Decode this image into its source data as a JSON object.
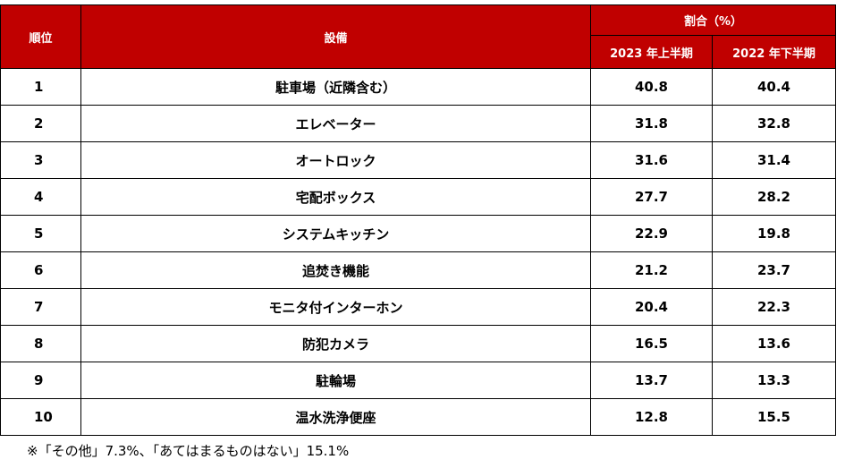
{
  "table": {
    "headers": {
      "rank": "順位",
      "facility": "設備",
      "share": "割合（%）",
      "period_2023h1": "2023 年上半期",
      "period_2022h2": "2022 年下半期"
    },
    "rows": [
      {
        "rank": "1",
        "facility": "駐車場（近隣含む）",
        "v2023": "40.8",
        "v2022": "40.4"
      },
      {
        "rank": "2",
        "facility": "エレベーター",
        "v2023": "31.8",
        "v2022": "32.8"
      },
      {
        "rank": "3",
        "facility": "オートロック",
        "v2023": "31.6",
        "v2022": "31.4"
      },
      {
        "rank": "4",
        "facility": "宅配ボックス",
        "v2023": "27.7",
        "v2022": "28.2"
      },
      {
        "rank": "5",
        "facility": "システムキッチン",
        "v2023": "22.9",
        "v2022": "19.8"
      },
      {
        "rank": "6",
        "facility": "追焚き機能",
        "v2023": "21.2",
        "v2022": "23.7"
      },
      {
        "rank": "7",
        "facility": "モニタ付インターホン",
        "v2023": "20.4",
        "v2022": "22.3"
      },
      {
        "rank": "8",
        "facility": "防犯カメラ",
        "v2023": "16.5",
        "v2022": "13.6"
      },
      {
        "rank": "9",
        "facility": "駐輪場",
        "v2023": "13.7",
        "v2022": "13.3"
      },
      {
        "rank": "10",
        "facility": "温水洗浄便座",
        "v2023": "12.8",
        "v2022": "15.5"
      }
    ]
  },
  "footnote": "※「その他」7.3%、「あてはまるものはない」15.1%",
  "colors": {
    "header_background": "#c00000",
    "header_text": "#ffffff",
    "border": "#000000"
  }
}
